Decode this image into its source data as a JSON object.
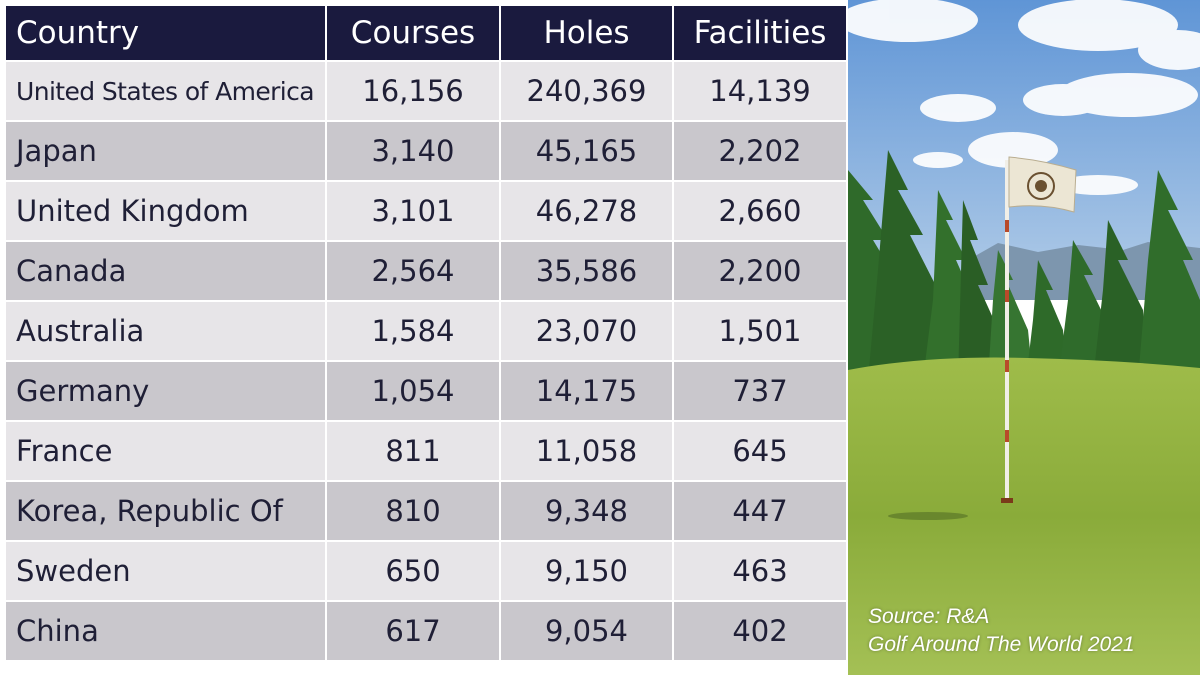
{
  "table": {
    "headers": {
      "country": "Country",
      "courses": "Courses",
      "holes": "Holes",
      "facilities": "Facilities"
    },
    "rows": [
      {
        "country": "United States of America",
        "courses": "16,156",
        "holes": "240,369",
        "facilities": "14,139"
      },
      {
        "country": "Japan",
        "courses": "3,140",
        "holes": "45,165",
        "facilities": "2,202"
      },
      {
        "country": "United Kingdom",
        "courses": "3,101",
        "holes": "46,278",
        "facilities": "2,660"
      },
      {
        "country": "Canada",
        "courses": "2,564",
        "holes": "35,586",
        "facilities": "2,200"
      },
      {
        "country": "Australia",
        "courses": "1,584",
        "holes": "23,070",
        "facilities": "1,501"
      },
      {
        "country": "Germany",
        "courses": "1,054",
        "holes": "14,175",
        "facilities": "737"
      },
      {
        "country": "France",
        "courses": "811",
        "holes": "11,058",
        "facilities": "645"
      },
      {
        "country": "Korea, Republic Of",
        "courses": "810",
        "holes": "9,348",
        "facilities": "447"
      },
      {
        "country": "Sweden",
        "courses": "650",
        "holes": "9,150",
        "facilities": "463"
      },
      {
        "country": "China",
        "courses": "617",
        "holes": "9,054",
        "facilities": "402"
      }
    ]
  },
  "source": {
    "line1": "Source: R&A",
    "line2": "Golf Around The World 2021"
  },
  "colors": {
    "header_bg": "#1a1a3e",
    "row_light": "#e7e5e8",
    "row_dark": "#c9c7cc"
  },
  "photo": {
    "subject": "golf green with flag pin, pine trees and blue sky",
    "icons": [
      "flag-icon"
    ]
  }
}
